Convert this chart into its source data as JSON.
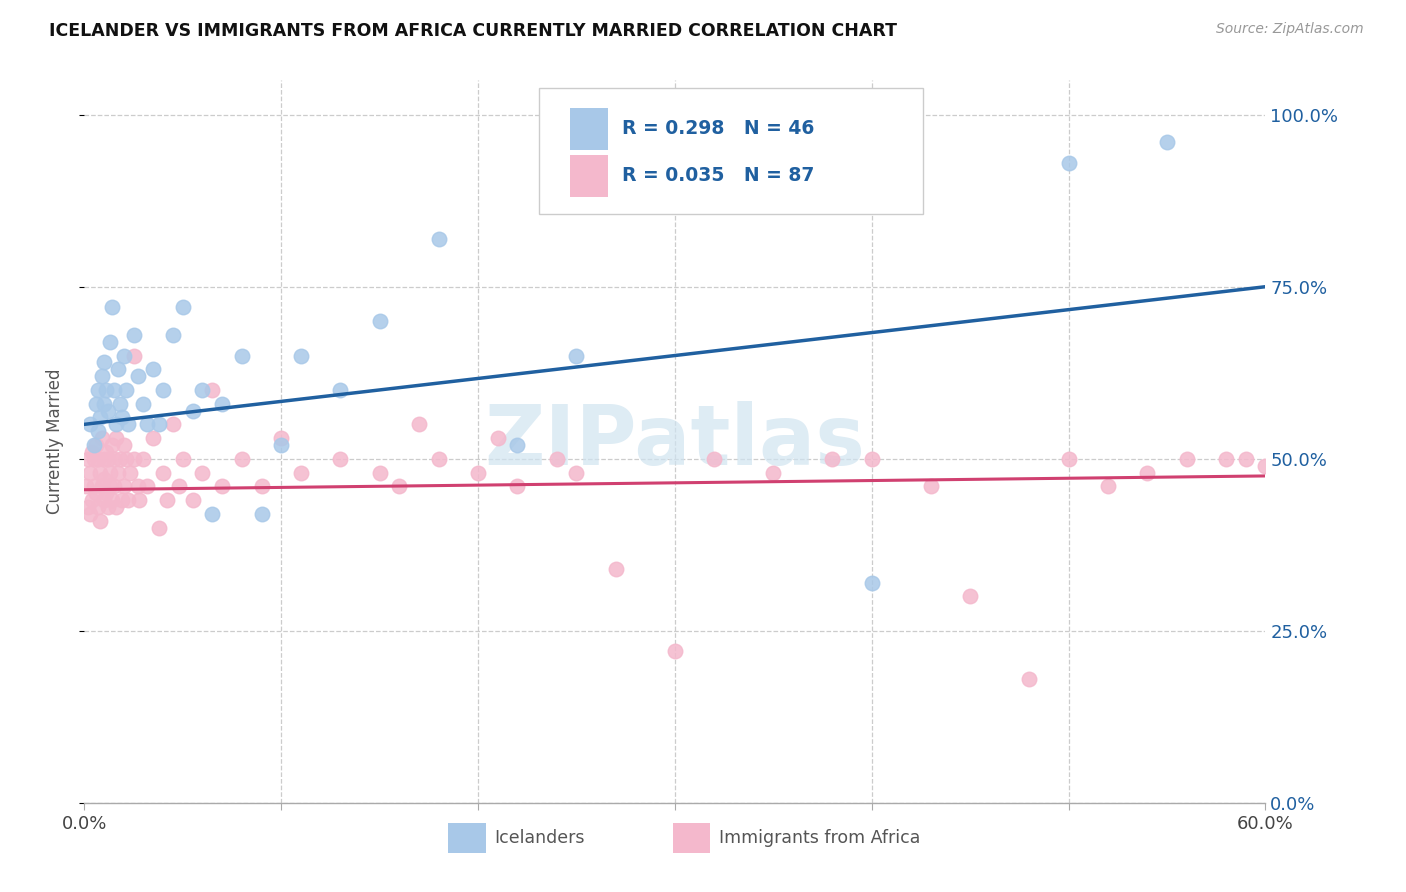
{
  "title": "ICELANDER VS IMMIGRANTS FROM AFRICA CURRENTLY MARRIED CORRELATION CHART",
  "source": "Source: ZipAtlas.com",
  "ylabel": "Currently Married",
  "ytick_values": [
    0.0,
    0.25,
    0.5,
    0.75,
    1.0
  ],
  "ytick_labels": [
    "0.0%",
    "25.0%",
    "50.0%",
    "75.0%",
    "100.0%"
  ],
  "xlim": [
    0.0,
    0.6
  ],
  "ylim": [
    0.0,
    1.05
  ],
  "legend_labels": [
    "Icelanders",
    "Immigrants from Africa"
  ],
  "blue_R": "R = 0.298",
  "blue_N": "N = 46",
  "pink_R": "R = 0.035",
  "pink_N": "N = 87",
  "blue_color": "#a8c8e8",
  "pink_color": "#f4b8cc",
  "blue_line_color": "#2060a0",
  "pink_line_color": "#d04070",
  "blue_label_color": "#2060a0",
  "watermark_text": "ZIPatlas",
  "watermark_color": "#d0e4f0",
  "blue_trend_x0": 0.0,
  "blue_trend_y0": 0.55,
  "blue_trend_x1": 0.6,
  "blue_trend_y1": 0.75,
  "pink_trend_x0": 0.0,
  "pink_trend_y0": 0.455,
  "pink_trend_x1": 0.6,
  "pink_trend_y1": 0.475,
  "ice_x": [
    0.003,
    0.005,
    0.006,
    0.007,
    0.007,
    0.008,
    0.009,
    0.01,
    0.01,
    0.011,
    0.012,
    0.013,
    0.014,
    0.015,
    0.016,
    0.017,
    0.018,
    0.019,
    0.02,
    0.021,
    0.022,
    0.025,
    0.027,
    0.03,
    0.032,
    0.035,
    0.038,
    0.04,
    0.045,
    0.05,
    0.055,
    0.06,
    0.065,
    0.07,
    0.08,
    0.09,
    0.1,
    0.11,
    0.13,
    0.15,
    0.18,
    0.22,
    0.25,
    0.4,
    0.5,
    0.55
  ],
  "ice_y": [
    0.55,
    0.52,
    0.58,
    0.6,
    0.54,
    0.56,
    0.62,
    0.58,
    0.64,
    0.6,
    0.57,
    0.67,
    0.72,
    0.6,
    0.55,
    0.63,
    0.58,
    0.56,
    0.65,
    0.6,
    0.55,
    0.68,
    0.62,
    0.58,
    0.55,
    0.63,
    0.55,
    0.6,
    0.68,
    0.72,
    0.57,
    0.6,
    0.42,
    0.58,
    0.65,
    0.42,
    0.52,
    0.65,
    0.6,
    0.7,
    0.82,
    0.52,
    0.65,
    0.32,
    0.93,
    0.96
  ],
  "afr_x": [
    0.001,
    0.002,
    0.002,
    0.003,
    0.003,
    0.004,
    0.004,
    0.005,
    0.005,
    0.006,
    0.006,
    0.007,
    0.007,
    0.008,
    0.008,
    0.009,
    0.009,
    0.01,
    0.01,
    0.01,
    0.011,
    0.011,
    0.012,
    0.012,
    0.013,
    0.013,
    0.014,
    0.014,
    0.015,
    0.015,
    0.016,
    0.016,
    0.017,
    0.018,
    0.019,
    0.02,
    0.02,
    0.021,
    0.022,
    0.023,
    0.025,
    0.025,
    0.027,
    0.028,
    0.03,
    0.032,
    0.035,
    0.038,
    0.04,
    0.042,
    0.045,
    0.048,
    0.05,
    0.055,
    0.06,
    0.065,
    0.07,
    0.08,
    0.09,
    0.1,
    0.11,
    0.13,
    0.15,
    0.16,
    0.17,
    0.18,
    0.2,
    0.21,
    0.22,
    0.24,
    0.25,
    0.27,
    0.3,
    0.32,
    0.35,
    0.38,
    0.4,
    0.43,
    0.45,
    0.48,
    0.5,
    0.52,
    0.54,
    0.56,
    0.58,
    0.59,
    0.6
  ],
  "afr_y": [
    0.46,
    0.5,
    0.43,
    0.48,
    0.42,
    0.51,
    0.44,
    0.5,
    0.46,
    0.52,
    0.45,
    0.5,
    0.43,
    0.48,
    0.41,
    0.53,
    0.46,
    0.5,
    0.44,
    0.47,
    0.51,
    0.45,
    0.5,
    0.43,
    0.48,
    0.46,
    0.52,
    0.44,
    0.5,
    0.46,
    0.53,
    0.43,
    0.48,
    0.5,
    0.44,
    0.52,
    0.46,
    0.5,
    0.44,
    0.48,
    0.65,
    0.5,
    0.46,
    0.44,
    0.5,
    0.46,
    0.53,
    0.4,
    0.48,
    0.44,
    0.55,
    0.46,
    0.5,
    0.44,
    0.48,
    0.6,
    0.46,
    0.5,
    0.46,
    0.53,
    0.48,
    0.5,
    0.48,
    0.46,
    0.55,
    0.5,
    0.48,
    0.53,
    0.46,
    0.5,
    0.48,
    0.34,
    0.22,
    0.5,
    0.48,
    0.5,
    0.5,
    0.46,
    0.3,
    0.18,
    0.5,
    0.46,
    0.48,
    0.5,
    0.5,
    0.5,
    0.49
  ]
}
